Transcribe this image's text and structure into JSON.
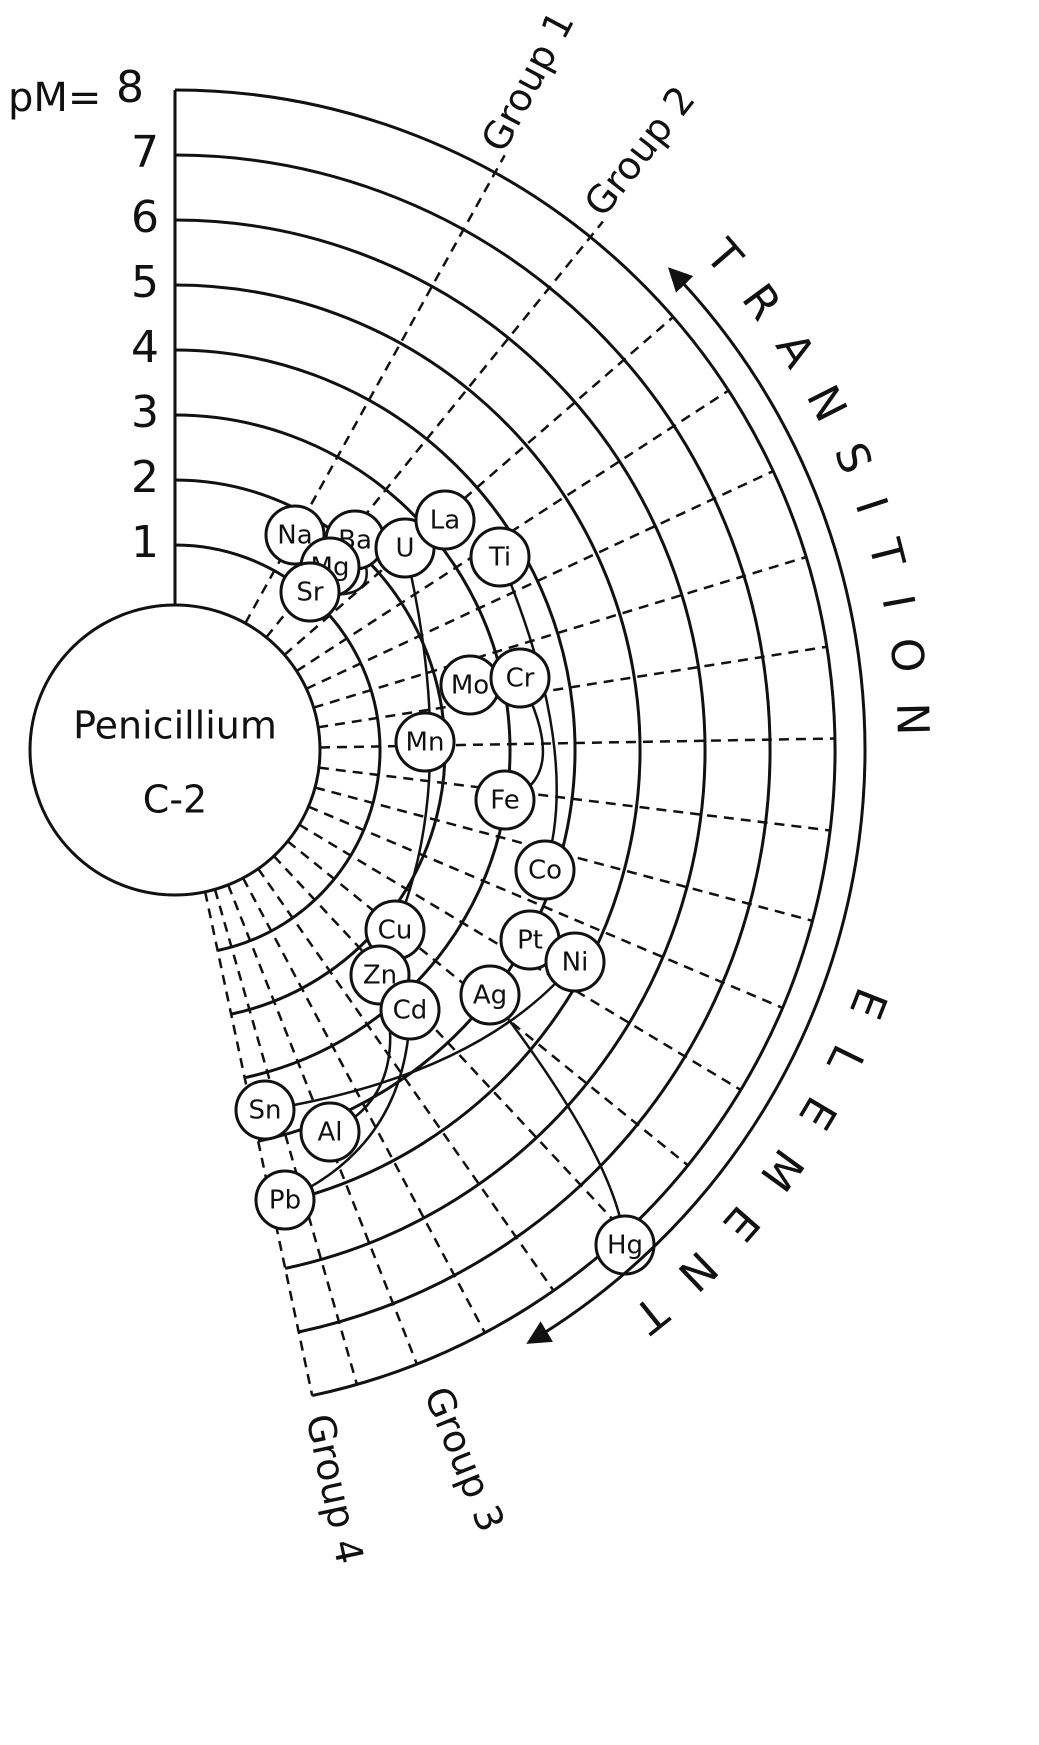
{
  "diagram": {
    "center_label": [
      "Penicillium",
      "C-2"
    ],
    "axis_label": "pM=",
    "ticks": [
      1,
      2,
      3,
      4,
      5,
      6,
      7,
      8
    ],
    "groups": [
      "Group 1",
      "Group 2",
      "Group 3",
      "Group 4"
    ],
    "arc_text": [
      "TRANSITION",
      "ELEMENT"
    ],
    "elements": [
      "Na",
      "Ba",
      "Mg",
      "Sr",
      "U",
      "La",
      "Ti",
      "Mo",
      "Cr",
      "Mn",
      "Fe",
      "Co",
      "Cu",
      "Pt",
      "Ni",
      "Zn",
      "Cd",
      "Ag",
      "Sn",
      "Al",
      "Pb",
      "Hg"
    ]
  }
}
